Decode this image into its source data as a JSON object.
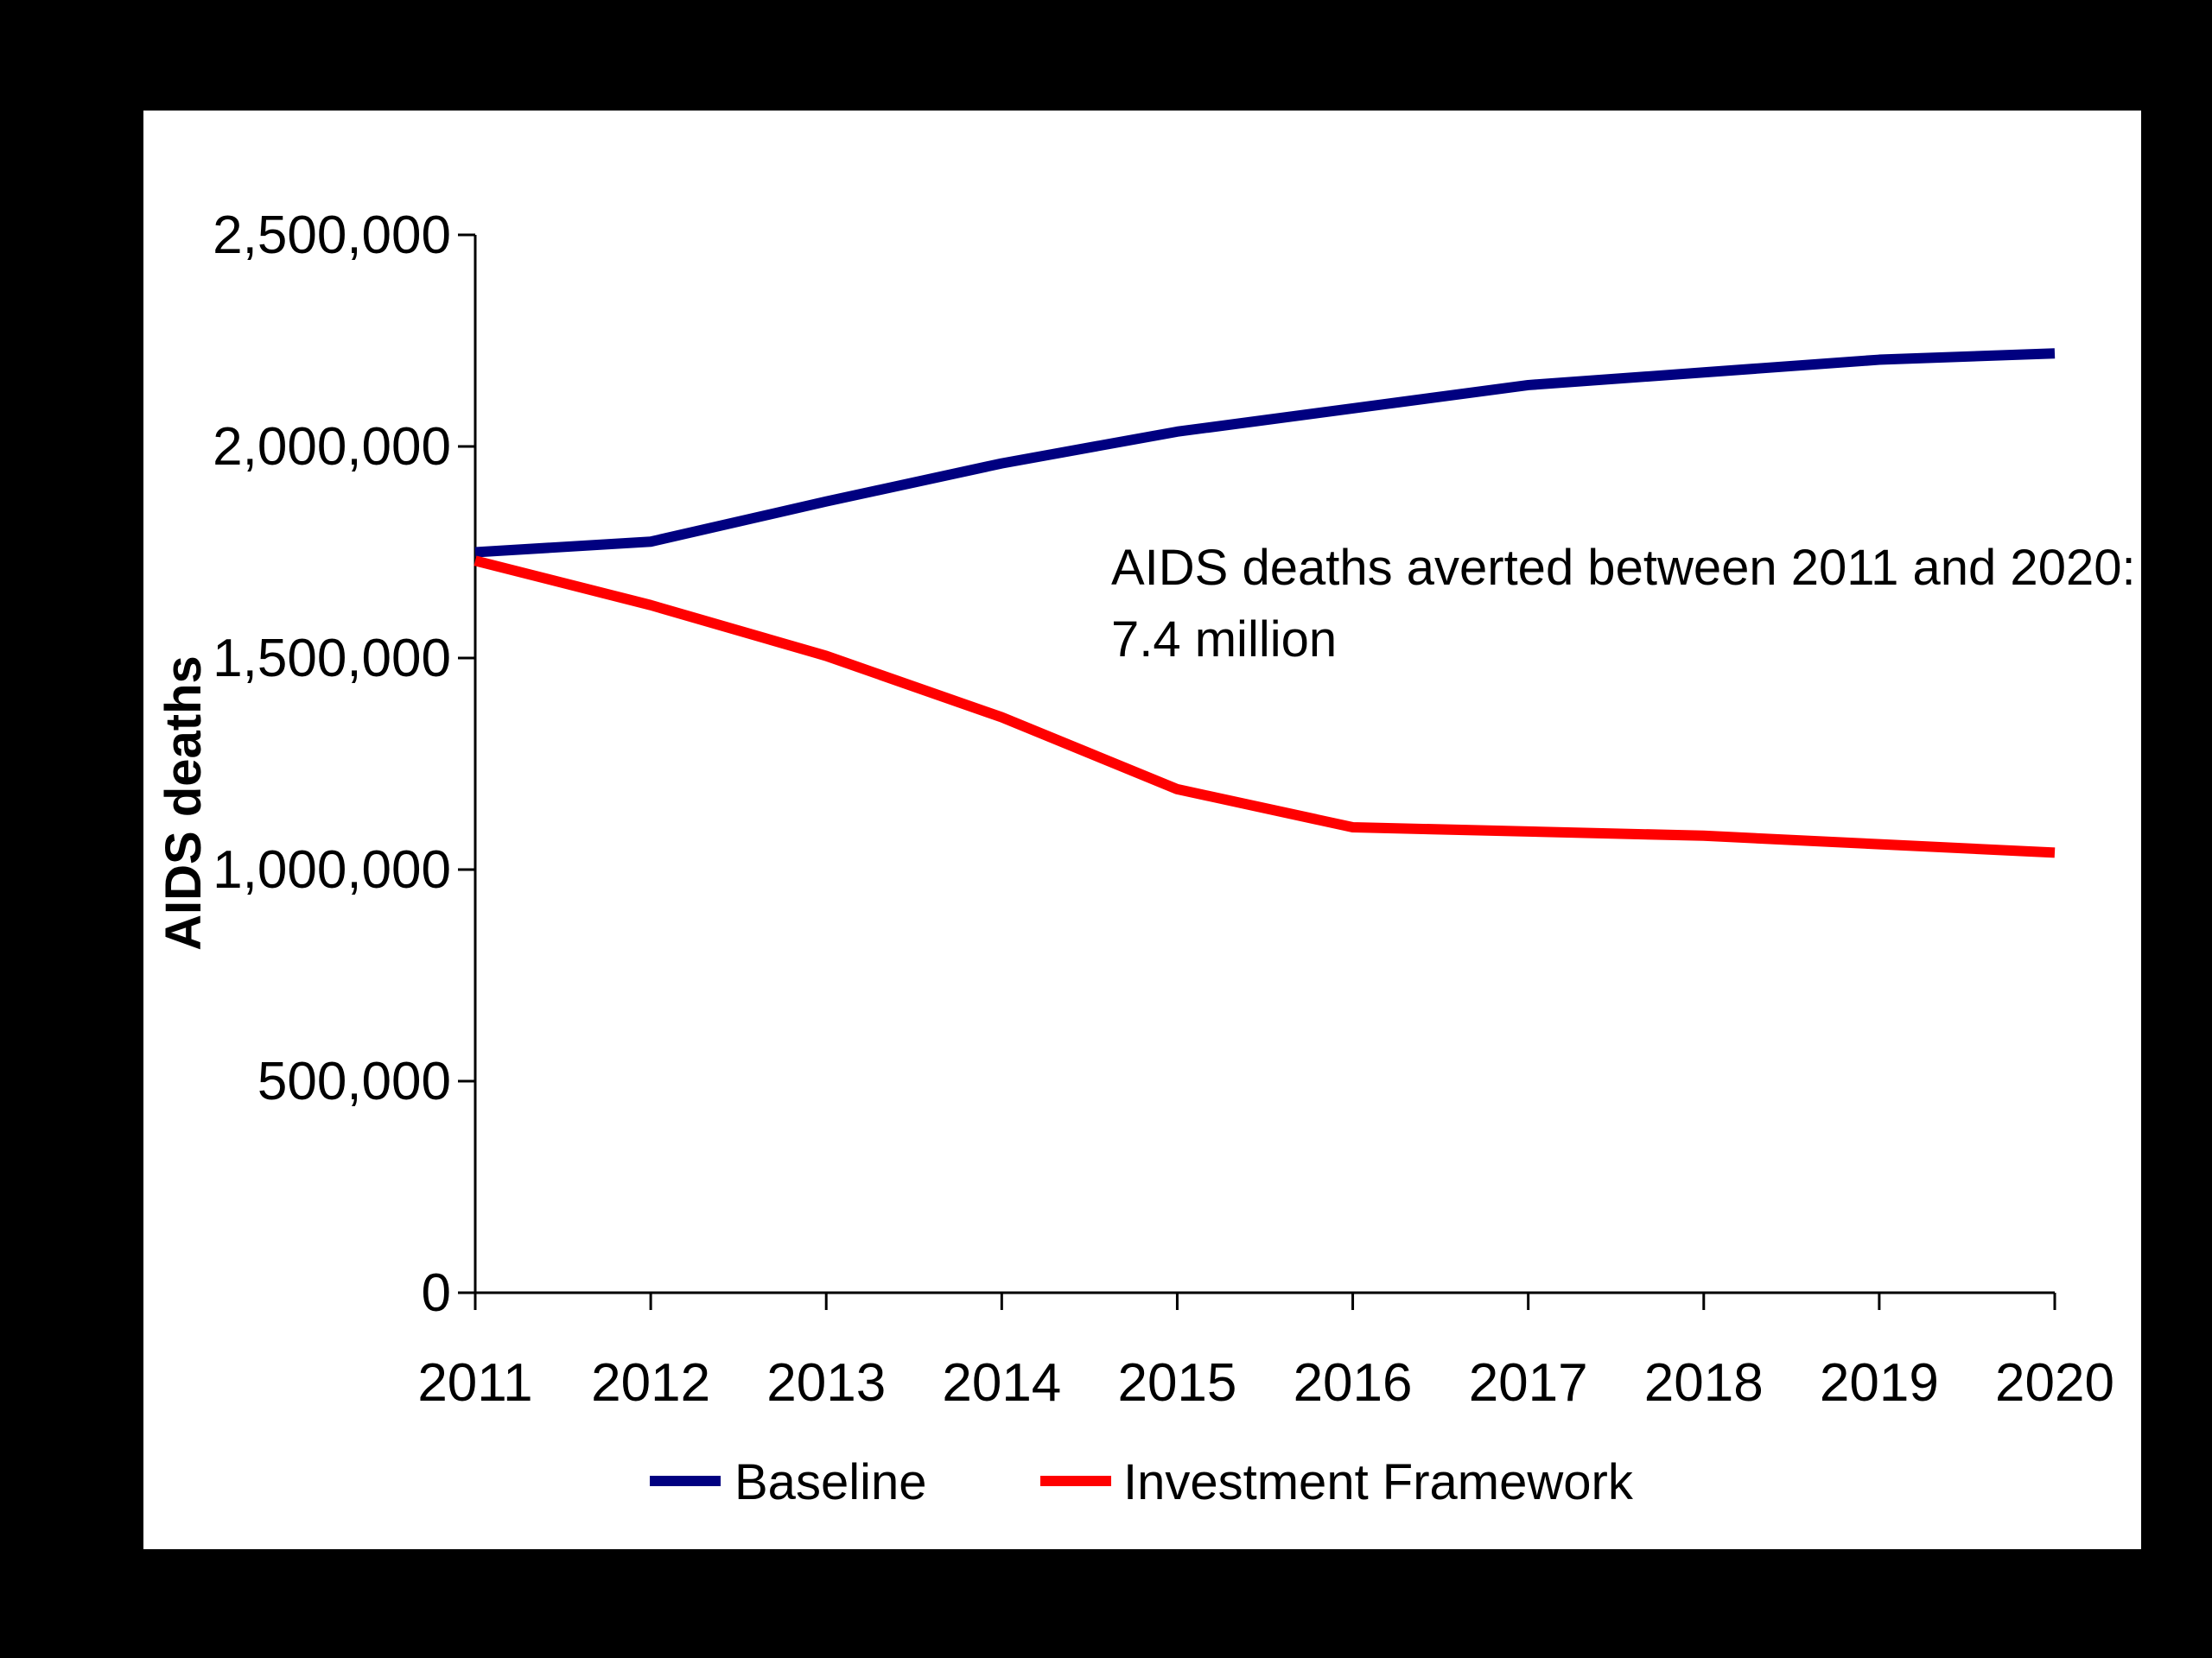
{
  "chart_data": {
    "type": "line",
    "title": "",
    "xlabel": "",
    "ylabel": "AIDS deaths",
    "x": [
      "2011",
      "2012",
      "2013",
      "2014",
      "2015",
      "2016",
      "2017",
      "2018",
      "2019",
      "2020"
    ],
    "y_ticks": [
      "0",
      "500,000",
      "1,000,000",
      "1,500,000",
      "2,000,000",
      "2,500,000"
    ],
    "y_tick_values": [
      0,
      500000,
      1000000,
      1500000,
      2000000,
      2500000
    ],
    "ylim": [
      0,
      2500000
    ],
    "grid": false,
    "legend_position": "bottom",
    "series": [
      {
        "name": "Baseline",
        "color": "#000080",
        "values": [
          1750000,
          1775000,
          1870000,
          1960000,
          2035000,
          2090000,
          2145000,
          2175000,
          2205000,
          2220000
        ]
      },
      {
        "name": "Investment Framework",
        "color": "#ff0000",
        "values": [
          1730000,
          1625000,
          1505000,
          1360000,
          1190000,
          1100000,
          1090000,
          1080000,
          1060000,
          1040000
        ]
      }
    ],
    "annotation": {
      "line1": "AIDS deaths averted between 2011 and 2020:",
      "line2": "7.4 million"
    }
  }
}
